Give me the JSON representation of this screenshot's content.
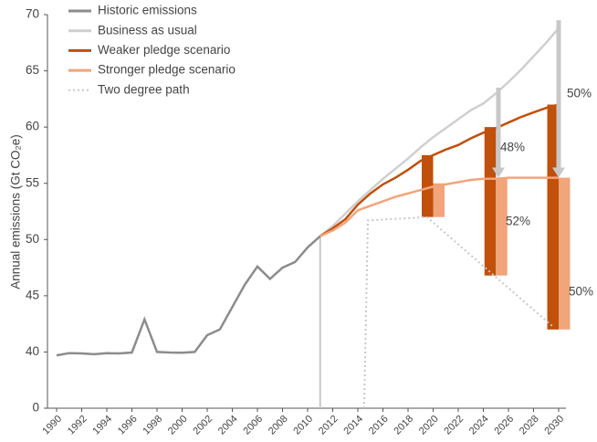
{
  "chart_data": {
    "type": "line",
    "ylabel": "Annual emissions (Gt CO₂e)",
    "xlim": [
      1990,
      2030
    ],
    "xticks": [
      1990,
      1992,
      1994,
      1996,
      1998,
      2000,
      2002,
      2004,
      2006,
      2008,
      2010,
      2012,
      2014,
      2016,
      2018,
      2020,
      2022,
      2024,
      2026,
      2028,
      2030
    ],
    "ylim": [
      0,
      70
    ],
    "ybreak": [
      0,
      40
    ],
    "yticks": [
      0,
      40,
      45,
      50,
      55,
      60,
      65,
      70
    ],
    "legend": "top-left",
    "series": [
      {
        "name": "Historic emissions",
        "color": "#8c8c8c",
        "style": "solid",
        "x": [
          1990,
          1991,
          1992,
          1993,
          1994,
          1995,
          1996,
          1997,
          1998,
          1999,
          2000,
          2001,
          2002,
          2003,
          2004,
          2005,
          2006,
          2007,
          2008,
          2009,
          2010,
          2011
        ],
        "values": [
          37.6,
          39.2,
          39.0,
          38.4,
          39.2,
          39.0,
          39.6,
          42.9,
          40.0,
          39.6,
          39.5,
          40.0,
          41.5,
          42.0,
          44.0,
          46.0,
          47.6,
          46.5,
          47.5,
          48.0,
          49.3,
          50.3
        ]
      },
      {
        "name": "Business as usual",
        "color": "#cfcfcf",
        "style": "solid",
        "x": [
          2011,
          2012,
          2013,
          2014,
          2015,
          2016,
          2017,
          2018,
          2019,
          2020,
          2021,
          2022,
          2023,
          2024,
          2025,
          2026,
          2027,
          2028,
          2029,
          2030
        ],
        "values": [
          50.3,
          51.2,
          52.3,
          53.4,
          54.4,
          55.4,
          56.3,
          57.2,
          58.2,
          59.1,
          59.9,
          60.7,
          61.5,
          62.1,
          63.0,
          64.0,
          65.1,
          66.3,
          67.5,
          68.8
        ]
      },
      {
        "name": "Weaker pledge scenario",
        "color": "#c0500a",
        "style": "solid",
        "x": [
          2011,
          2012,
          2013,
          2014,
          2015,
          2016,
          2017,
          2018,
          2019,
          2020,
          2021,
          2022,
          2023,
          2024,
          2025,
          2026,
          2027,
          2028,
          2029,
          2030
        ],
        "values": [
          50.3,
          51.0,
          51.8,
          53.1,
          54.1,
          54.9,
          55.5,
          56.2,
          57.0,
          57.5,
          58.0,
          58.4,
          59.0,
          59.5,
          59.9,
          60.4,
          60.9,
          61.3,
          61.7,
          62.0
        ]
      },
      {
        "name": "Stronger pledge scenario",
        "color": "#f2a47a",
        "style": "solid",
        "x": [
          2011,
          2012,
          2013,
          2014,
          2015,
          2016,
          2017,
          2018,
          2019,
          2020,
          2021,
          2022,
          2023,
          2024,
          2025,
          2026,
          2027,
          2028,
          2029,
          2030
        ],
        "values": [
          50.3,
          50.8,
          51.5,
          52.6,
          53.0,
          53.4,
          53.8,
          54.1,
          54.4,
          54.7,
          54.9,
          55.1,
          55.3,
          55.4,
          55.4,
          55.5,
          55.5,
          55.5,
          55.5,
          55.5
        ]
      },
      {
        "name": "Two degree path",
        "color": "#c8c8c8",
        "style": "dotted",
        "x": [
          2014.5,
          2014.8,
          2019.5,
          2029.5
        ],
        "values": [
          0,
          51.7,
          52.0,
          42.3
        ]
      }
    ],
    "start_line": {
      "x": 2011,
      "top": 50.3,
      "color": "#c8c8c8"
    },
    "gap_bars": [
      {
        "x": 2020,
        "weaker": [
          52.0,
          57.5
        ],
        "stronger": [
          52.0,
          55.0
        ]
      },
      {
        "x": 2025,
        "weaker": [
          46.8,
          60.0
        ],
        "stronger": [
          46.8,
          55.5
        ]
      },
      {
        "x": 2030,
        "weaker": [
          42.0,
          62.0
        ],
        "stronger": [
          42.0,
          55.5
        ]
      }
    ],
    "arrows": [
      {
        "x": 2025.2,
        "from": 63.5,
        "to": 55.5,
        "color": "#c8c8c8"
      },
      {
        "x": 2030,
        "from": 69.5,
        "to": 55.5,
        "color": "#c8c8c8"
      }
    ],
    "annotations": [
      "48%",
      "52%",
      "50%",
      "50%"
    ]
  }
}
